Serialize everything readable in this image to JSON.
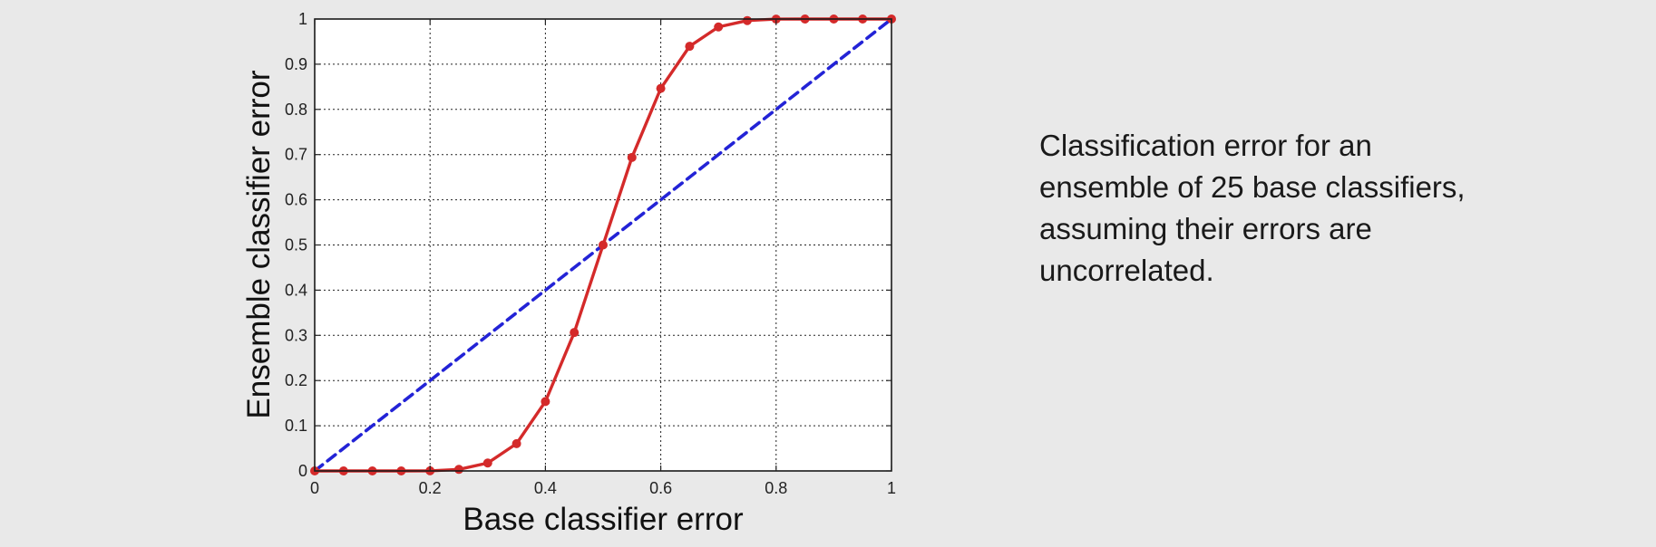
{
  "chart_data": {
    "type": "line",
    "title": "",
    "xlabel": "Base classifier error",
    "ylabel": "Ensemble classifier error",
    "xlim": [
      0,
      1
    ],
    "ylim": [
      0,
      1
    ],
    "grid": true,
    "x_ticks": [
      0,
      0.2,
      0.4,
      0.6,
      0.8,
      1
    ],
    "x_tick_labels": [
      "0",
      "0.2",
      "0.4",
      "0.6",
      "0.8",
      "1"
    ],
    "y_ticks": [
      0,
      0.1,
      0.2,
      0.3,
      0.4,
      0.5,
      0.6,
      0.7,
      0.8,
      0.9,
      1
    ],
    "y_tick_labels": [
      "0",
      "0.1",
      "0.2",
      "0.3",
      "0.4",
      "0.5",
      "0.6",
      "0.7",
      "0.8",
      "0.9",
      "1"
    ],
    "series": [
      {
        "style": "solid",
        "markers": true,
        "color": "#d42a2a",
        "x": [
          0,
          0.05,
          0.1,
          0.15,
          0.2,
          0.25,
          0.3,
          0.35,
          0.4,
          0.45,
          0.5,
          0.55,
          0.6,
          0.65,
          0.7,
          0.75,
          0.8,
          0.85,
          0.9,
          0.95,
          1
        ],
        "y": [
          0,
          0,
          0,
          0,
          0.0002,
          0.0034,
          0.0175,
          0.0604,
          0.1536,
          0.3063,
          0.5,
          0.6937,
          0.8464,
          0.9396,
          0.9825,
          0.9966,
          0.9998,
          1,
          1,
          1,
          1
        ]
      },
      {
        "style": "dashed",
        "markers": false,
        "color": "#2323d6",
        "x": [
          0,
          1
        ],
        "y": [
          0,
          1
        ]
      }
    ]
  },
  "caption": {
    "lines": [
      "Classification error for an",
      "ensemble of 25 base classifiers,",
      "assuming their errors are",
      "uncorrelated."
    ]
  }
}
